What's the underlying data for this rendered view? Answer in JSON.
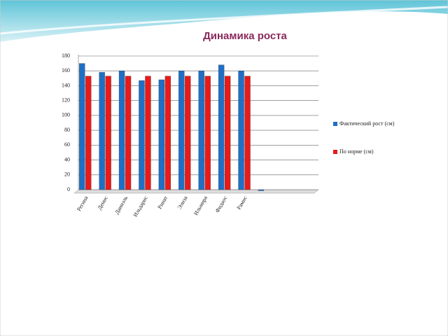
{
  "chart_data": {
    "type": "bar",
    "title": "Динамика роста",
    "categories": [
      "Регина",
      "Денис",
      "Даниэль",
      "Ильдарис",
      "Ринат",
      "Элиза",
      "Ильмира",
      "Фидаос",
      "Рамис",
      null,
      null,
      null
    ],
    "series": [
      {
        "name": "Фактический рост (см)",
        "color": "#1f6fc5",
        "values": [
          170,
          158,
          160,
          147,
          148,
          160,
          160,
          168,
          160,
          0,
          null,
          null
        ]
      },
      {
        "name": "По норме (см)",
        "color": "#e81a1a",
        "values": [
          153,
          153,
          153,
          153,
          153,
          153,
          153,
          153,
          153,
          null,
          null,
          null
        ]
      }
    ],
    "ylim": [
      0,
      180
    ],
    "yticks": [
      0,
      20,
      40,
      60,
      80,
      100,
      120,
      140,
      160,
      180
    ],
    "grid": true,
    "legend": "right"
  }
}
